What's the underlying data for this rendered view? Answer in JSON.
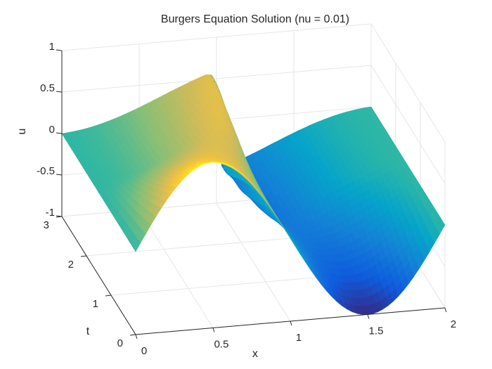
{
  "chart_data": {
    "type": "surface",
    "title": "Burgers Equation Solution (nu = 0.01)",
    "xlabel": "x",
    "ylabel": "t",
    "zlabel": "u",
    "xlim": [
      0,
      2
    ],
    "ylim": [
      0,
      3
    ],
    "zlim": [
      -1,
      1
    ],
    "x_ticks": [
      "0",
      "0.5",
      "1",
      "1.5",
      "2"
    ],
    "y_ticks": [
      "0",
      "1",
      "2",
      "3"
    ],
    "z_ticks": [
      "-1",
      "-0.5",
      "0",
      "0.5",
      "1"
    ],
    "nu": 0.01,
    "grid": true,
    "colormap": "parula",
    "color_range": [
      -1,
      1
    ],
    "surface_shape": "initial u = sin(pi*x), steepening into a shock at x = 1 over t"
  }
}
